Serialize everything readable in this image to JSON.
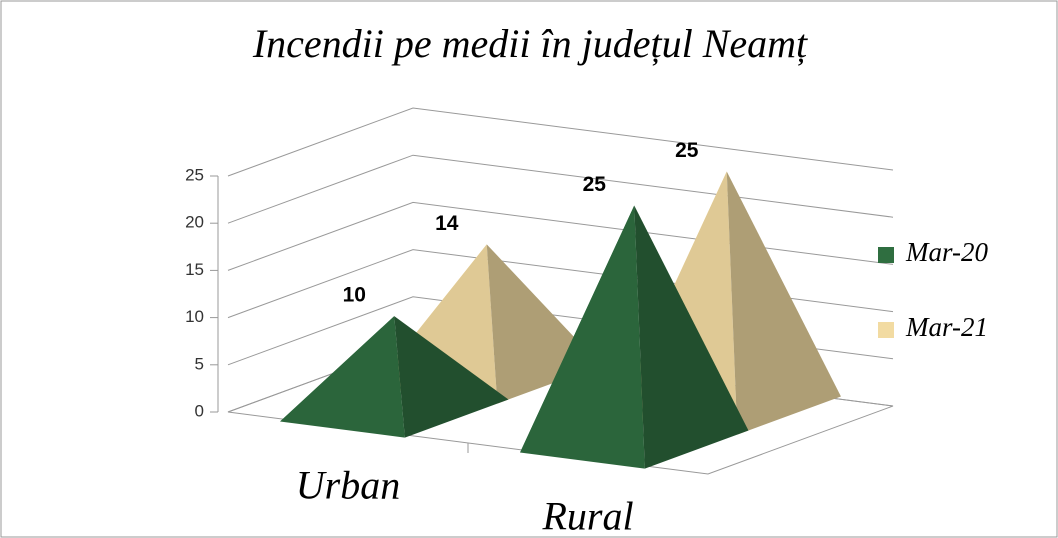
{
  "chart_data": {
    "type": "pyramid3d",
    "title": "Incendii pe medii în județul Neamț",
    "categories": [
      "Urban",
      "Rural"
    ],
    "series": [
      {
        "name": "Mar-20",
        "color": "#2f6e40",
        "values": [
          10,
          25
        ]
      },
      {
        "name": "Mar-21",
        "color": "#f2dba2",
        "values": [
          14,
          25
        ]
      }
    ],
    "ylim": [
      0,
      25
    ],
    "yticks": [
      0,
      5,
      10,
      15,
      20,
      25
    ],
    "grid": true,
    "legend": "right",
    "data_labels": true
  }
}
